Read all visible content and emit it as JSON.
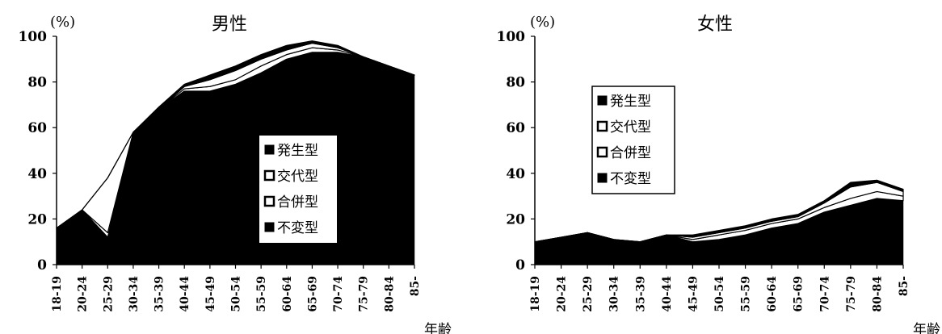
{
  "chart_data": [
    {
      "type": "area",
      "stacked": true,
      "title": "男性",
      "ylabel": "(%)",
      "xlabel": "年齢",
      "ylim": [
        0,
        100
      ],
      "yticks": [
        "0",
        "20",
        "40",
        "60",
        "80",
        "100"
      ],
      "categories": [
        "18-19",
        "20-24",
        "25-29",
        "30-34",
        "35-39",
        "40-44",
        "45-49",
        "50-54",
        "55-59",
        "60-64",
        "65-69",
        "70-74",
        "75-79",
        "80-84",
        "85-"
      ],
      "series": [
        {
          "name": "不変型",
          "values": [
            16,
            24,
            12,
            58,
            68,
            76,
            76,
            79,
            84,
            90,
            93,
            93,
            91,
            87,
            83
          ]
        },
        {
          "name": "合併型",
          "values": [
            0,
            0,
            2,
            0,
            0,
            1,
            2,
            2,
            3,
            2,
            2,
            1,
            0,
            0,
            0
          ]
        },
        {
          "name": "交代型",
          "values": [
            0,
            0,
            24,
            0,
            0,
            1,
            3,
            4,
            3,
            2,
            2,
            1,
            0,
            0,
            0
          ]
        },
        {
          "name": "発生型",
          "values": [
            0,
            0,
            0,
            0,
            1,
            1,
            2,
            2,
            2,
            2,
            1,
            1,
            0,
            0,
            0
          ]
        }
      ],
      "legend": {
        "placement": "center-right",
        "order": [
          "発生型",
          "交代型",
          "合併型",
          "不変型"
        ]
      }
    },
    {
      "type": "area",
      "stacked": true,
      "title": "女性",
      "ylabel": "(%)",
      "xlabel": "年齢",
      "ylim": [
        0,
        100
      ],
      "yticks": [
        "0",
        "20",
        "40",
        "60",
        "80",
        "100"
      ],
      "categories": [
        "18-19",
        "20-24",
        "25-29",
        "30-34",
        "35-39",
        "40-44",
        "45-49",
        "50-54",
        "55-59",
        "60-64",
        "65-69",
        "70-74",
        "75-79",
        "80-84",
        "85-"
      ],
      "series": [
        {
          "name": "不変型",
          "values": [
            10,
            12,
            14,
            11,
            10,
            13,
            10,
            11,
            13,
            16,
            18,
            23,
            26,
            29,
            28
          ]
        },
        {
          "name": "合併型",
          "values": [
            0,
            0,
            0,
            0,
            0,
            0,
            1,
            2,
            2,
            2,
            2,
            2,
            3,
            3,
            2
          ]
        },
        {
          "name": "交代型",
          "values": [
            0,
            0,
            0,
            0,
            0,
            0,
            1,
            1,
            1,
            1,
            1,
            2,
            5,
            4,
            2
          ]
        },
        {
          "name": "発生型",
          "values": [
            0,
            0,
            0,
            0,
            0,
            0,
            1,
            1,
            1,
            1,
            1,
            1,
            2,
            1,
            1
          ]
        }
      ],
      "legend": {
        "placement": "top-left",
        "order": [
          "発生型",
          "交代型",
          "合併型",
          "不変型"
        ]
      }
    }
  ],
  "colors": {
    "不変型": "#000000",
    "合併型": "#ffffff",
    "交代型": "#ffffff",
    "発生型": "#000000",
    "axis": "#000000"
  }
}
